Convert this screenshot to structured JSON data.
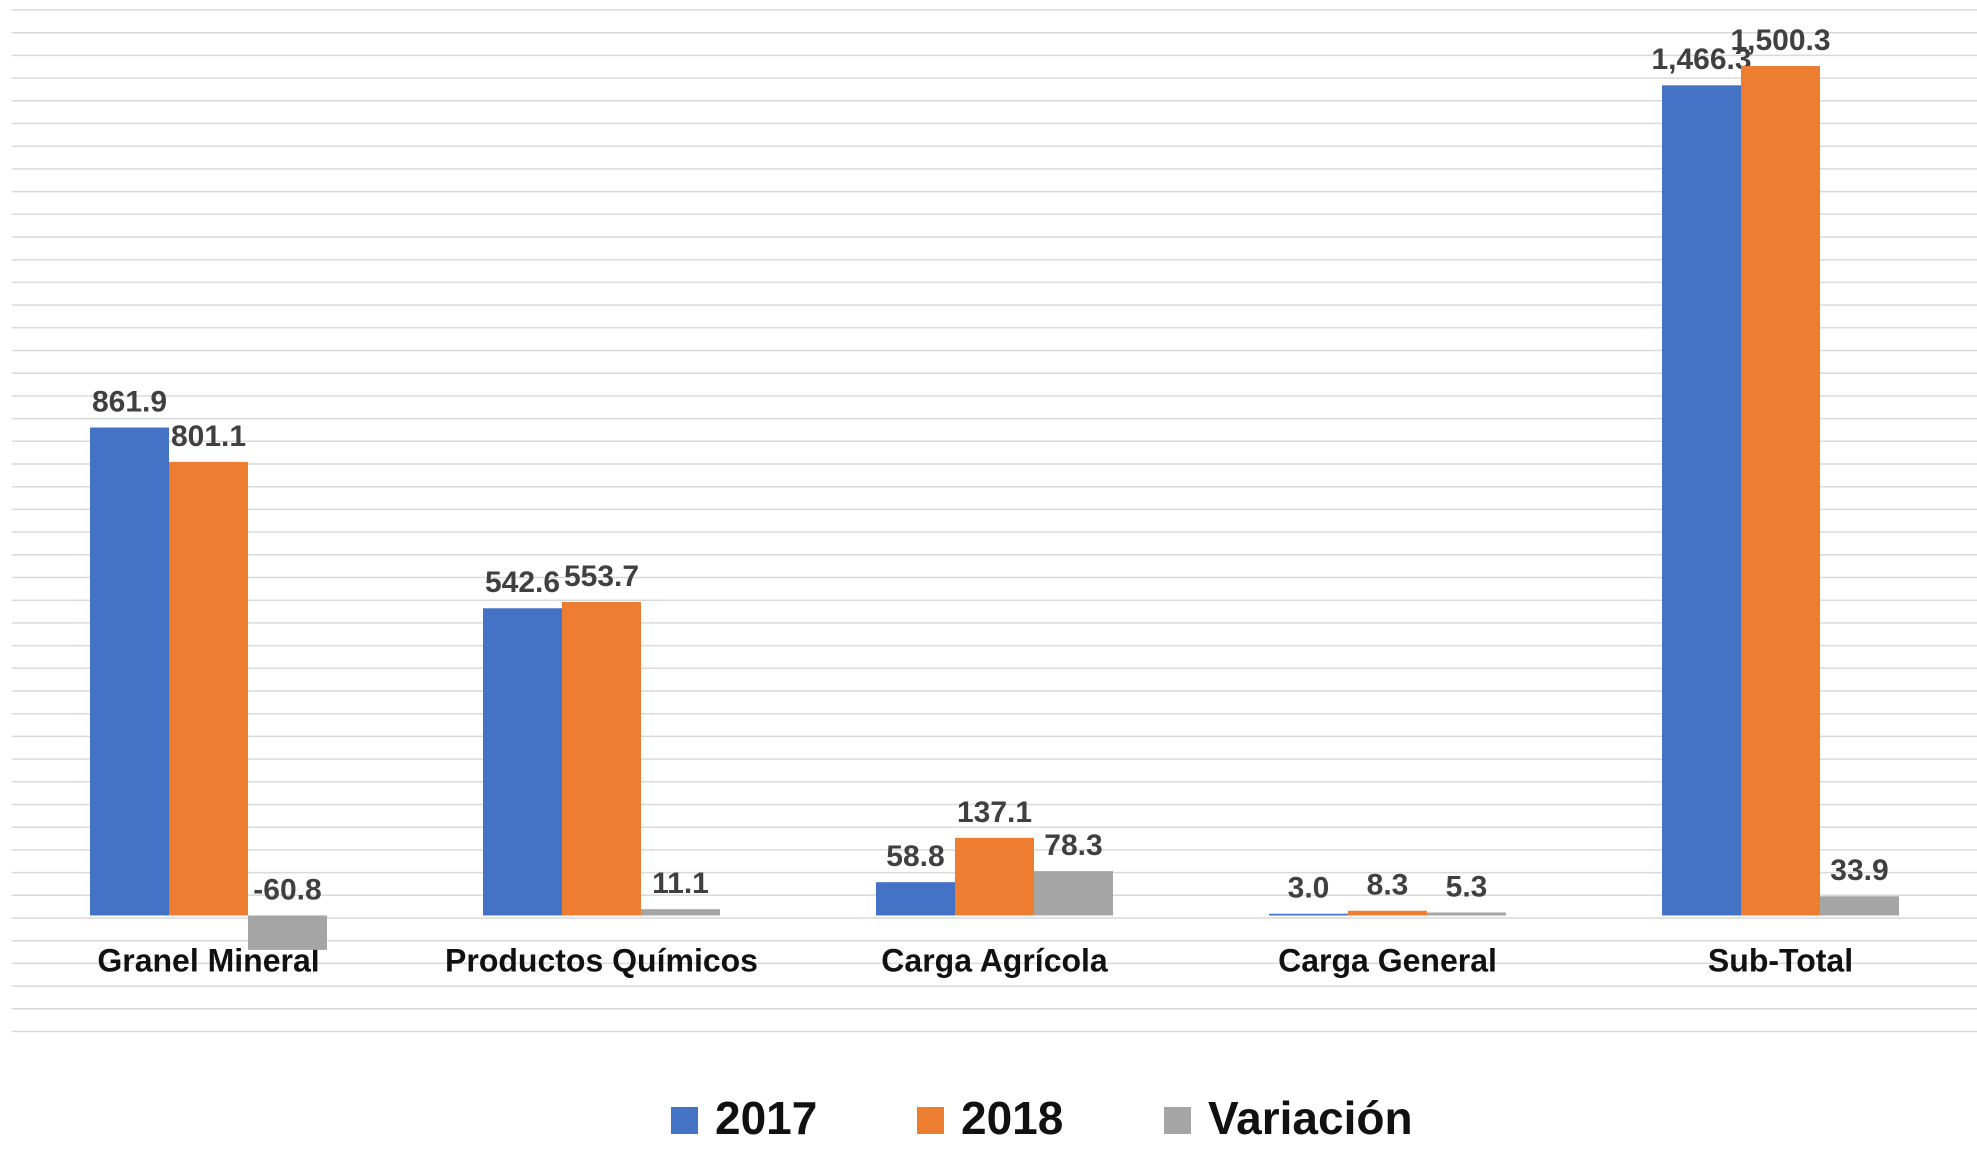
{
  "chart_data": {
    "type": "bar",
    "categories": [
      "Granel Mineral",
      "Productos Químicos",
      "Carga Agrícola",
      "Carga General",
      "Sub-Total"
    ],
    "series": [
      {
        "name": "2017",
        "color": "#4472c4",
        "values": [
          861.9,
          542.6,
          58.8,
          3.0,
          1466.3
        ],
        "value_labels": [
          "861.9",
          "542.6",
          "58.8",
          "3.0",
          "1,466.3"
        ]
      },
      {
        "name": "2018",
        "color": "#ed7d31",
        "values": [
          801.1,
          553.7,
          137.1,
          8.3,
          1500.3
        ],
        "value_labels": [
          "801.1",
          "553.7",
          "137.1",
          "8.3",
          "1,500.3"
        ]
      },
      {
        "name": "Variación",
        "color": "#a5a5a5",
        "values": [
          -60.8,
          11.1,
          78.3,
          5.3,
          33.9
        ],
        "value_labels": [
          "-60.8",
          "11.1",
          "78.3",
          "5.3",
          "33.9"
        ]
      }
    ],
    "ylim": [
      -200,
      1600
    ]
  }
}
